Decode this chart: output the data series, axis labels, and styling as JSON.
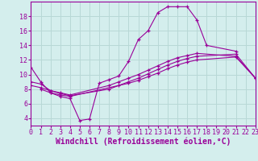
{
  "title": "",
  "xlabel": "Windchill (Refroidissement éolien,°C)",
  "background_color": "#d4eeed",
  "grid_color": "#b8d8d6",
  "line_color": "#990099",
  "xlim": [
    0,
    23
  ],
  "ylim": [
    3,
    20
  ],
  "xticks": [
    0,
    1,
    2,
    3,
    4,
    5,
    6,
    7,
    8,
    9,
    10,
    11,
    12,
    13,
    14,
    15,
    16,
    17,
    18,
    19,
    20,
    21,
    22,
    23
  ],
  "yticks": [
    4,
    6,
    8,
    10,
    12,
    14,
    16,
    18
  ],
  "series1_x": [
    0,
    1,
    2,
    3,
    4,
    5,
    6,
    7,
    8,
    9,
    10,
    11,
    12,
    13,
    14,
    15,
    16,
    17,
    18,
    21
  ],
  "series1_y": [
    11.0,
    9.0,
    7.5,
    7.0,
    6.7,
    3.7,
    3.9,
    8.8,
    9.3,
    9.8,
    11.8,
    14.8,
    16.0,
    18.5,
    19.3,
    19.3,
    19.3,
    17.5,
    14.0,
    13.2
  ],
  "series2_x": [
    0,
    1,
    2,
    3,
    4,
    8,
    9,
    10,
    11,
    12,
    13,
    14,
    15,
    16,
    17,
    21,
    23
  ],
  "series2_y": [
    9.0,
    8.7,
    7.8,
    7.5,
    7.2,
    8.5,
    9.0,
    9.5,
    10.0,
    10.6,
    11.2,
    11.8,
    12.3,
    12.6,
    12.9,
    12.5,
    9.5
  ],
  "series3_x": [
    0,
    1,
    2,
    3,
    4,
    8,
    9,
    10,
    11,
    12,
    13,
    14,
    15,
    16,
    17,
    21,
    23
  ],
  "series3_y": [
    8.5,
    8.2,
    7.8,
    7.4,
    7.1,
    8.0,
    8.5,
    9.0,
    9.5,
    10.1,
    10.7,
    11.3,
    11.8,
    12.2,
    12.5,
    12.8,
    9.5
  ],
  "series4_x": [
    1,
    2,
    3,
    4,
    10,
    11,
    12,
    13,
    14,
    15,
    16,
    17,
    21,
    23
  ],
  "series4_y": [
    8.0,
    7.5,
    7.2,
    7.0,
    8.8,
    9.2,
    9.7,
    10.2,
    10.8,
    11.3,
    11.7,
    12.0,
    12.4,
    9.5
  ],
  "font_color": "#990099",
  "tick_font_size": 6,
  "label_font_size": 7
}
